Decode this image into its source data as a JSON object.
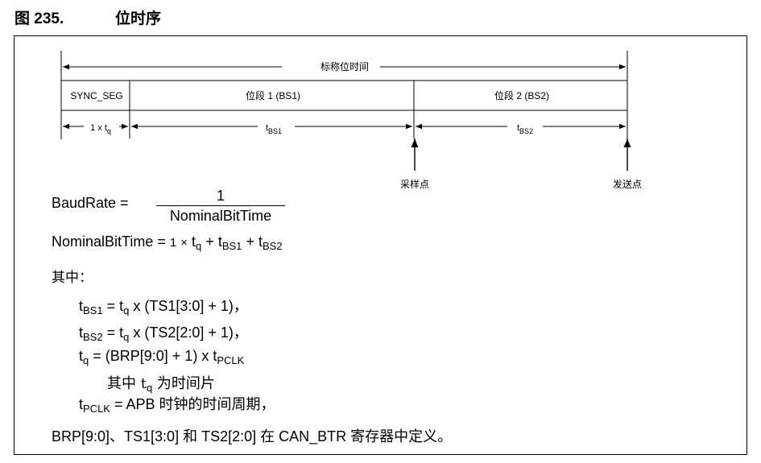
{
  "figure": {
    "number": "图 235.",
    "title": "位时序"
  },
  "timing": {
    "nominal_label": "标称位时间",
    "sync_seg": "SYNC_SEG",
    "bs1_label": "位段 1 (BS1)",
    "bs2_label": "位段 2 (BS2)",
    "tq_label": "1 x t",
    "tq_sub": "q",
    "tbs1": "t",
    "tbs1_sub": "BS1",
    "tbs2": "t",
    "tbs2_sub": "BS2",
    "sample_point": "采样点",
    "transmit_point": "发送点"
  },
  "equations": {
    "baud_lhs": "BaudRate  =",
    "baud_num": "1",
    "baud_den": "NominalBitTime",
    "nbt_lhs": "NominalBitTime  =",
    "nbt_1": "1",
    "nbt_times": "×",
    "t": "t",
    "q": "q",
    "plus": "+",
    "bs1": "BS1",
    "bs2": "BS2",
    "where": "其中：",
    "line1_rhs": " = t",
    "line1_tail": " x (TS1[3:0] + 1)，",
    "line2_tail": " x (TS2[2:0] + 1)，",
    "line3_mid": " = (BRP[9:0] + 1) x t",
    "pclk": "PCLK",
    "line4_a": "其中 t",
    "line4_b": " 为时间片",
    "line5_rhs": " = APB 时钟的时间周期，",
    "final": "BRP[9:0]、TS1[3:0] 和 TS2[2:0] 在 CAN_BTR 寄存器中定义。"
  }
}
